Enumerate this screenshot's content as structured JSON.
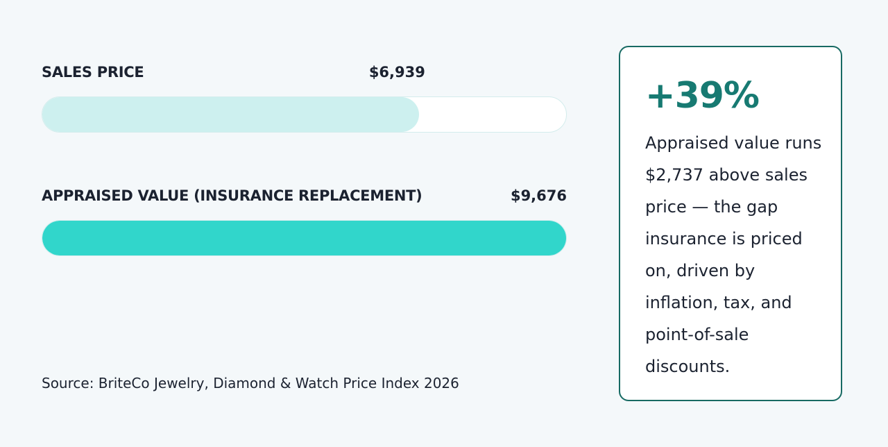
{
  "chart_data": {
    "type": "bar",
    "orientation": "horizontal",
    "categories": [
      "SALES PRICE",
      "APPRAISED VALUE (INSURANCE REPLACEMENT)"
    ],
    "values": [
      6939,
      9676
    ],
    "value_labels": [
      "$6,939",
      "$9,676"
    ],
    "colors": [
      "#cdf0ef",
      "#31d6cb"
    ],
    "track_color": "#ffffff",
    "source": "Source: BriteCo Jewelry, Diamond & Watch Price Index 2026"
  },
  "callout": {
    "headline": "+39%",
    "body": "Appraised value runs $2,737 above sales price — the gap insurance is priced on, driven by inflation, tax, and point-of-sale discounts."
  }
}
